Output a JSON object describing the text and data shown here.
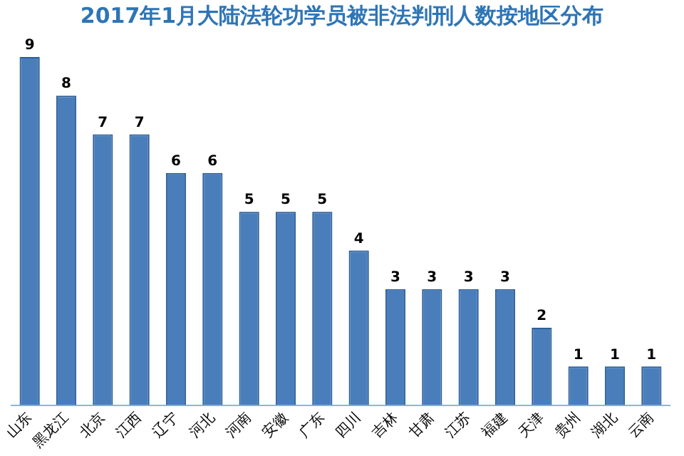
{
  "chart_data": {
    "type": "bar",
    "title": "2017年1月大陆法轮功学员被非法判刑人数按地区分布",
    "categories": [
      "山东",
      "黑龙江",
      "北京",
      "江西",
      "辽宁",
      "河北",
      "河南",
      "安徽",
      "广东",
      "四川",
      "吉林",
      "甘肃",
      "江苏",
      "福建",
      "天津",
      "贵州",
      "湖北",
      "云南"
    ],
    "values": [
      9,
      8,
      7,
      7,
      6,
      6,
      5,
      5,
      5,
      4,
      3,
      3,
      3,
      3,
      2,
      1,
      1,
      1
    ],
    "color": "#4a7ebb",
    "data_labels": true,
    "grid": false,
    "legend": false
  }
}
